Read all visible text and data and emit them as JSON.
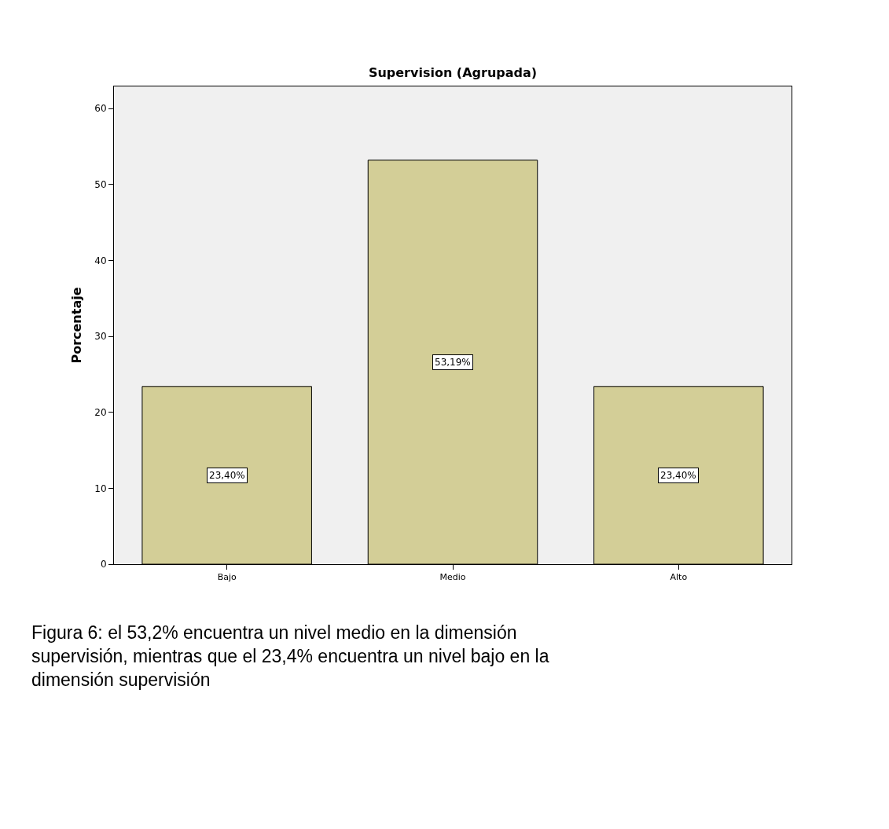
{
  "chart_data": {
    "type": "bar",
    "title": "Supervision (Agrupada)",
    "ylabel": "Porcentaje",
    "categories": [
      "Bajo",
      "Medio",
      "Alto"
    ],
    "values": [
      23.4,
      53.19,
      23.4
    ],
    "value_labels": [
      "23,40%",
      "53,19%",
      "23,40%"
    ],
    "color": "#d3ce97",
    "ylim": [
      0,
      62.9
    ],
    "yticks": [
      0,
      10,
      20,
      30,
      40,
      50,
      60
    ],
    "grid": false,
    "legend": false,
    "annotations": [
      "Figura 6: el 53,2% encuentra un nivel medio en la dimensión supervisión, mientras que el 23,4% encuentra un nivel bajo en la dimensión supervisión"
    ]
  }
}
